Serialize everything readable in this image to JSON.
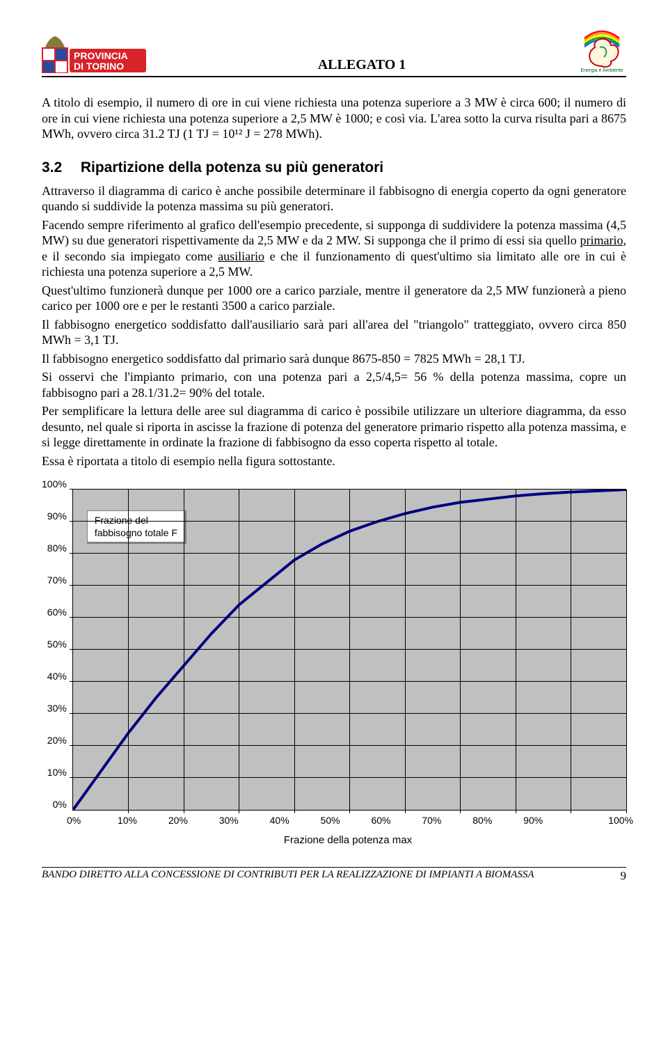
{
  "header": {
    "title": "ALLEGATO 1",
    "left_logo_text1": "PROVINCIA",
    "left_logo_text2": "DI TORINO",
    "right_logo_text": "Energia e Ambiente"
  },
  "para1": "A titolo di esempio, il numero di ore in cui viene richiesta una potenza superiore a 3 MW è circa 600; il numero di ore in cui viene richiesta una potenza superiore a 2,5 MW è 1000; e così via. L'area sotto la curva risulta pari a 8675 MWh, ovvero circa 31.2 TJ (1 TJ = 10¹² J = 278 MWh).",
  "section": {
    "num": "3.2",
    "title": "Ripartizione della potenza su più generatori"
  },
  "para2a": "Attraverso il diagramma di carico è anche possibile determinare il fabbisogno di energia coperto da ogni generatore quando si suddivide la potenza massima su più generatori.",
  "para2b_pre": "Facendo sempre riferimento al grafico dell'esempio precedente, si supponga di suddividere la potenza massima (4,5 MW) su due generatori rispettivamente da 2,5 MW e da 2 MW. Si supponga che il primo di essi sia quello ",
  "para2b_u1": "primario",
  "para2b_mid": ", e il secondo sia impiegato come ",
  "para2b_u2": "ausiliario",
  "para2b_post": " e che il funzionamento di quest'ultimo sia limitato alle ore in cui è richiesta una potenza superiore a 2,5 MW.",
  "para3": "Quest'ultimo funzionerà dunque per 1000 ore a carico parziale, mentre il generatore da 2,5 MW funzionerà a pieno carico per 1000 ore e per le restanti 3500 a carico parziale.",
  "para4": "Il fabbisogno energetico soddisfatto dall'ausiliario sarà pari all'area del \"triangolo\" tratteggiato, ovvero circa 850 MWh = 3,1 TJ.",
  "para5": "Il fabbisogno energetico soddisfatto dal primario sarà dunque 8675-850 = 7825 MWh = 28,1 TJ.",
  "para6": "Si osservi che l'impianto primario, con una potenza pari a 2,5/4,5= 56 % della potenza massima, copre un fabbisogno pari a 28.1/31.2= 90% del totale.",
  "para7": "Per semplificare la lettura delle aree sul diagramma di carico è possibile utilizzare un ulteriore diagramma, da esso desunto, nel quale si riporta in ascisse la frazione di potenza del generatore primario rispetto alla potenza massima, e si legge direttamente in ordinate la frazione di fabbisogno da esso coperta rispetto al totale.",
  "para8": "Essa è riportata a titolo di esempio nella figura sottostante.",
  "chart": {
    "type": "line",
    "legend_l1": "Frazione del",
    "legend_l2": "fabbisogno totale F",
    "x_label": "Frazione della potenza max",
    "y_ticks": [
      "100%",
      "90%",
      "80%",
      "70%",
      "60%",
      "50%",
      "40%",
      "30%",
      "20%",
      "10%",
      "0%"
    ],
    "x_ticks": [
      "0%",
      "10%",
      "20%",
      "30%",
      "40%",
      "50%",
      "60%",
      "70%",
      "80%",
      "90%",
      "100%"
    ],
    "background_color": "#c0c0c0",
    "grid_color": "#000000",
    "line_color": "#000080",
    "line_width": 4,
    "font_family": "Arial",
    "font_size": 14,
    "xlim": [
      0,
      100
    ],
    "ylim": [
      0,
      100
    ],
    "data_points": [
      {
        "x": 0,
        "y": 0
      },
      {
        "x": 5,
        "y": 12
      },
      {
        "x": 10,
        "y": 24
      },
      {
        "x": 15,
        "y": 35
      },
      {
        "x": 20,
        "y": 45
      },
      {
        "x": 25,
        "y": 55
      },
      {
        "x": 30,
        "y": 64
      },
      {
        "x": 35,
        "y": 71
      },
      {
        "x": 40,
        "y": 78
      },
      {
        "x": 45,
        "y": 83
      },
      {
        "x": 50,
        "y": 87
      },
      {
        "x": 55,
        "y": 90
      },
      {
        "x": 60,
        "y": 92.5
      },
      {
        "x": 65,
        "y": 94.5
      },
      {
        "x": 70,
        "y": 96
      },
      {
        "x": 75,
        "y": 97
      },
      {
        "x": 80,
        "y": 98
      },
      {
        "x": 85,
        "y": 98.7
      },
      {
        "x": 90,
        "y": 99.2
      },
      {
        "x": 95,
        "y": 99.6
      },
      {
        "x": 100,
        "y": 100
      }
    ]
  },
  "footer": {
    "text": "BANDO DIRETTO ALLA CONCESSIONE DI CONTRIBUTI PER LA REALIZZAZIONE DI IMPIANTI A BIOMASSA",
    "page": "9"
  }
}
